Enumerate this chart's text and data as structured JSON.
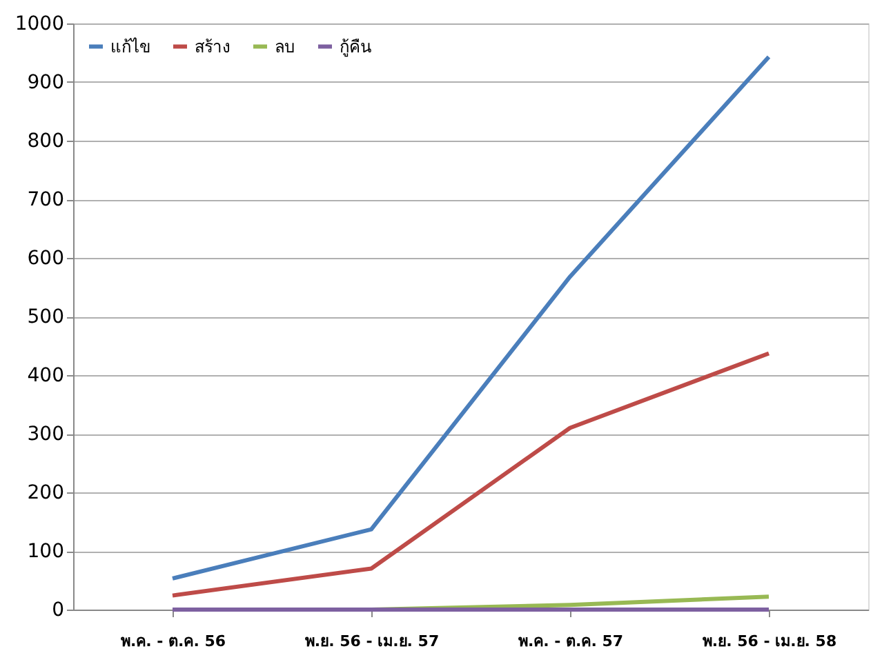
{
  "chart_data": {
    "type": "line",
    "categories": [
      "พ.ค. - ต.ค. 56",
      "พ.ย. 56 - เม.ย. 57",
      "พ.ค. - ต.ค. 57",
      "พ.ย. 56 - เม.ย. 58"
    ],
    "series": [
      {
        "name": "แก้ไข",
        "color": "#4a7ebb",
        "values": [
          53,
          137,
          568,
          943
        ]
      },
      {
        "name": "สร้าง",
        "color": "#be4b48",
        "values": [
          24,
          70,
          310,
          437
        ]
      },
      {
        "name": "ลบ",
        "color": "#98b954",
        "values": [
          0,
          0,
          8,
          22
        ]
      },
      {
        "name": "กู้คืน",
        "color": "#7d60a0",
        "values": [
          0,
          0,
          0,
          0
        ]
      }
    ],
    "ylim": [
      0,
      1000
    ],
    "yticks": [
      0,
      100,
      200,
      300,
      400,
      500,
      600,
      700,
      800,
      900,
      1000
    ],
    "grid": "y",
    "legend": "top left",
    "marker": "none",
    "line_style": "solid"
  }
}
